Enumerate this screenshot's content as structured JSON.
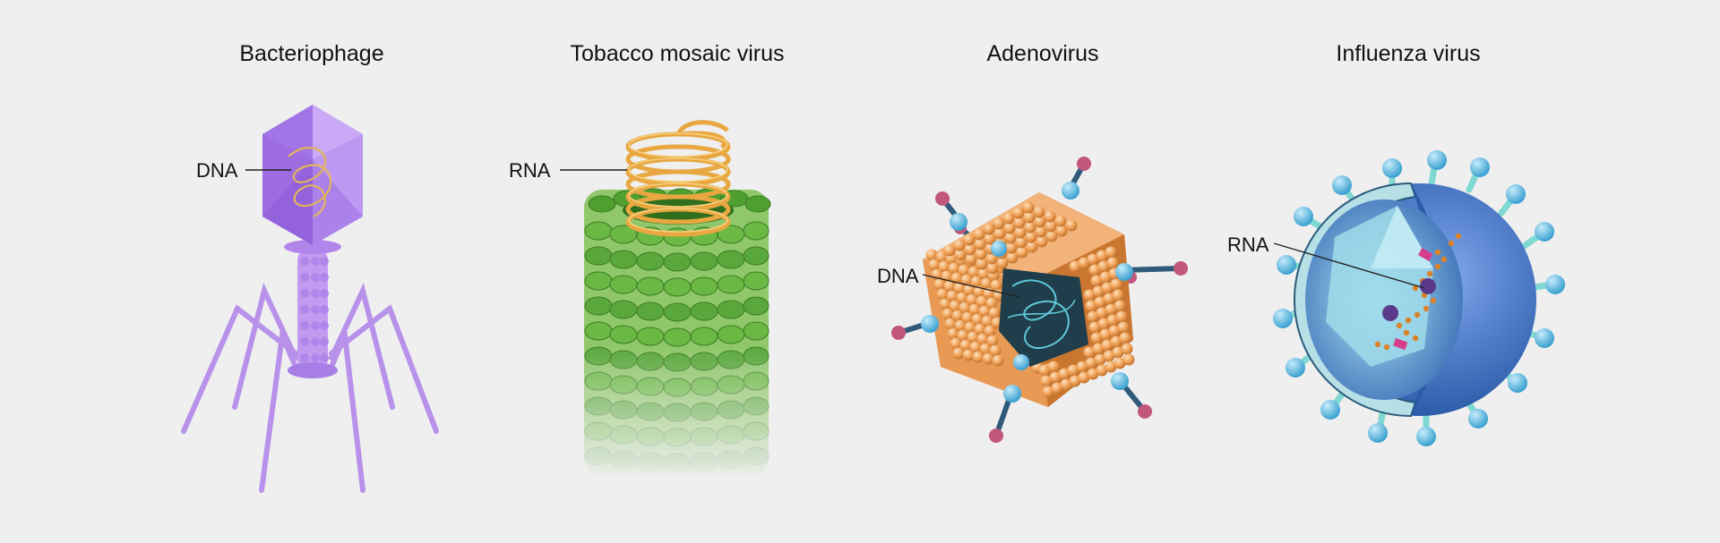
{
  "viruses": [
    {
      "title": "Bacteriophage",
      "label": "DNA",
      "colors": {
        "main": "#a77ee6",
        "accent": "#e0b060"
      }
    },
    {
      "title": "Tobacco mosaic virus",
      "label": "RNA",
      "colors": {
        "main": "#5aa83c",
        "accent": "#f0b24a"
      }
    },
    {
      "title": "Adenovirus",
      "label": "DNA",
      "colors": {
        "main": "#ec9a4e",
        "accent": "#5bb8d8"
      }
    },
    {
      "title": "Influenza virus",
      "label": "RNA",
      "colors": {
        "main": "#3b6fc7",
        "accent": "#6cc6ea"
      }
    }
  ]
}
